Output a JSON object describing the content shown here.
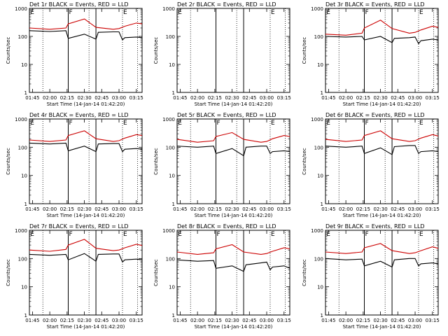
{
  "chart_data": [
    {
      "type": "line",
      "title": "Det 1r BLACK = Events, RED = LLD",
      "ylabel": "Counts/sec",
      "xlabel": "Start Time (14-Jan-14 01:42:20)",
      "yscale": "log",
      "ylim": [
        1,
        1000
      ],
      "xticks": [
        "01:45",
        "02:00",
        "02:15",
        "02:30",
        "02:45",
        "03:00",
        "03:15"
      ],
      "xlim": [
        "01:42:20",
        "03:20"
      ],
      "markers": [
        {
          "label": "E",
          "time": "01:42:30"
        },
        {
          "label": "F",
          "time": "02:16"
        },
        {
          "label": "E",
          "time": "03:03"
        }
      ],
      "solid_lines": [
        "02:16",
        "02:40"
      ],
      "dotted_lines": [
        "01:54",
        "02:34",
        "03:03",
        "03:16"
      ],
      "series": [
        {
          "color": "#000000",
          "x": [
            "01:42:20",
            "02:00",
            "02:14",
            "02:16",
            "02:30",
            "02:40",
            "02:42",
            "02:55",
            "03:00",
            "03:03",
            "03:05",
            "03:15",
            "03:20"
          ],
          "values": [
            160,
            150,
            160,
            85,
            120,
            80,
            140,
            145,
            145,
            75,
            90,
            95,
            90
          ]
        },
        {
          "color": "#cc0000",
          "x": [
            "01:42:20",
            "02:00",
            "02:14",
            "02:16",
            "02:30",
            "02:40",
            "02:55",
            "03:00",
            "03:05",
            "03:15",
            "03:20"
          ],
          "values": [
            200,
            180,
            200,
            280,
            420,
            210,
            180,
            190,
            230,
            300,
            280
          ]
        }
      ]
    },
    {
      "type": "line",
      "title": "Det 2r BLACK = Events, RED = LLD",
      "ylabel": "Counts/sec",
      "xlabel": "Start Time (14-Jan-14 01:42:20)",
      "yscale": "log",
      "ylim": [
        1,
        1000
      ],
      "xticks": [
        "01:45",
        "02:00",
        "02:15",
        "02:30",
        "02:45",
        "03:00",
        "03:15"
      ],
      "xlim": [
        "01:42:20",
        "03:20"
      ],
      "markers": [
        {
          "label": "E",
          "time": "01:42:30"
        },
        {
          "label": "E",
          "time": "03:03"
        }
      ],
      "solid_lines": [
        "02:16",
        "02:40"
      ],
      "dotted_lines": [
        "01:54",
        "02:34",
        "03:03",
        "03:16"
      ],
      "series": []
    },
    {
      "type": "line",
      "title": "Det 3r BLACK = Events, RED = LLD",
      "ylabel": "Counts/sec",
      "xlabel": "Start Time (14-Jan-14 01:42:20)",
      "yscale": "log",
      "ylim": [
        1,
        1000
      ],
      "xticks": [
        "01:45",
        "02:00",
        "02:15",
        "02:30",
        "02:45",
        "03:00",
        "03:15"
      ],
      "xlim": [
        "01:42:20",
        "03:20"
      ],
      "markers": [
        {
          "label": "E",
          "time": "01:42:30"
        },
        {
          "label": "F",
          "time": "02:16"
        },
        {
          "label": "E",
          "time": "03:03"
        }
      ],
      "solid_lines": [
        "02:16",
        "02:40"
      ],
      "dotted_lines": [
        "01:54",
        "02:34",
        "03:03",
        "03:16"
      ],
      "series": [
        {
          "color": "#000000",
          "x": [
            "01:42:20",
            "02:00",
            "02:14",
            "02:16",
            "02:30",
            "02:40",
            "02:42",
            "02:55",
            "03:00",
            "03:03",
            "03:05",
            "03:15",
            "03:20"
          ],
          "values": [
            100,
            95,
            100,
            75,
            100,
            60,
            85,
            90,
            95,
            55,
            70,
            80,
            75
          ]
        },
        {
          "color": "#cc0000",
          "x": [
            "01:42:20",
            "02:00",
            "02:14",
            "02:16",
            "02:30",
            "02:40",
            "02:55",
            "03:00",
            "03:05",
            "03:15",
            "03:20"
          ],
          "values": [
            120,
            110,
            130,
            200,
            380,
            190,
            130,
            140,
            170,
            230,
            210
          ]
        }
      ]
    },
    {
      "type": "line",
      "title": "Det 4r BLACK = Events, RED = LLD",
      "ylabel": "Counts/sec",
      "xlabel": "Start Time (14-Jan-14 01:42:20)",
      "yscale": "log",
      "ylim": [
        1,
        1000
      ],
      "xticks": [
        "01:45",
        "02:00",
        "02:15",
        "02:30",
        "02:45",
        "03:00",
        "03:15"
      ],
      "xlim": [
        "01:42:20",
        "03:20"
      ],
      "markers": [
        {
          "label": "E",
          "time": "01:42:30"
        },
        {
          "label": "F",
          "time": "02:16"
        },
        {
          "label": "E",
          "time": "03:03"
        }
      ],
      "solid_lines": [
        "02:16",
        "02:40"
      ],
      "dotted_lines": [
        "01:54",
        "02:34",
        "03:03",
        "03:16"
      ],
      "series": [
        {
          "color": "#000000",
          "x": [
            "01:42:20",
            "02:00",
            "02:14",
            "02:16",
            "02:30",
            "02:40",
            "02:42",
            "02:55",
            "03:00",
            "03:03",
            "03:05",
            "03:15",
            "03:20"
          ],
          "values": [
            140,
            130,
            140,
            75,
            110,
            70,
            130,
            135,
            135,
            70,
            85,
            90,
            85
          ]
        },
        {
          "color": "#cc0000",
          "x": [
            "01:42:20",
            "02:00",
            "02:14",
            "02:16",
            "02:30",
            "02:40",
            "02:55",
            "03:00",
            "03:05",
            "03:15",
            "03:20"
          ],
          "values": [
            180,
            160,
            180,
            260,
            380,
            200,
            160,
            170,
            210,
            280,
            260
          ]
        }
      ]
    },
    {
      "type": "line",
      "title": "Det 5r BLACK = Events, RED = LLD",
      "ylabel": "Counts/sec",
      "xlabel": "Start Time (14-Jan-14 01:42:20)",
      "yscale": "log",
      "ylim": [
        1,
        1000
      ],
      "xticks": [
        "01:45",
        "02:00",
        "02:15",
        "02:30",
        "02:45",
        "03:00",
        "03:15"
      ],
      "xlim": [
        "01:42:20",
        "03:20"
      ],
      "markers": [
        {
          "label": "E",
          "time": "01:42:30"
        },
        {
          "label": "F",
          "time": "02:16"
        },
        {
          "label": "E",
          "time": "03:03"
        }
      ],
      "solid_lines": [
        "02:16",
        "02:40"
      ],
      "dotted_lines": [
        "01:54",
        "02:34",
        "03:03",
        "03:16"
      ],
      "series": [
        {
          "color": "#000000",
          "x": [
            "01:42:20",
            "02:00",
            "02:14",
            "02:16",
            "02:30",
            "02:40",
            "02:42",
            "02:55",
            "03:00",
            "03:03",
            "03:05",
            "03:15",
            "03:20"
          ],
          "values": [
            110,
            100,
            110,
            60,
            90,
            50,
            100,
            110,
            110,
            60,
            70,
            75,
            70
          ]
        },
        {
          "color": "#cc0000",
          "x": [
            "01:42:20",
            "02:00",
            "02:14",
            "02:16",
            "02:30",
            "02:40",
            "02:55",
            "03:00",
            "03:05",
            "03:15",
            "03:20"
          ],
          "values": [
            190,
            150,
            170,
            240,
            330,
            190,
            150,
            160,
            200,
            260,
            240
          ]
        }
      ]
    },
    {
      "type": "line",
      "title": "Det 6r BLACK = Events, RED = LLD",
      "ylabel": "Counts/sec",
      "xlabel": "Start Time (14-Jan-14 01:42:20)",
      "yscale": "log",
      "ylim": [
        1,
        1000
      ],
      "xticks": [
        "01:45",
        "02:00",
        "02:15",
        "02:30",
        "02:45",
        "03:00",
        "03:15"
      ],
      "xlim": [
        "01:42:20",
        "03:20"
      ],
      "markers": [
        {
          "label": "E",
          "time": "01:42:30"
        },
        {
          "label": "F",
          "time": "02:16"
        },
        {
          "label": "E",
          "time": "03:03"
        }
      ],
      "solid_lines": [
        "02:16",
        "02:40"
      ],
      "dotted_lines": [
        "01:54",
        "02:34",
        "03:03",
        "03:16"
      ],
      "series": [
        {
          "color": "#000000",
          "x": [
            "01:42:20",
            "02:00",
            "02:14",
            "02:16",
            "02:30",
            "02:40",
            "02:42",
            "02:55",
            "03:00",
            "03:03",
            "03:05",
            "03:15",
            "03:20"
          ],
          "values": [
            110,
            100,
            110,
            60,
            95,
            55,
            105,
            115,
            115,
            60,
            70,
            75,
            70
          ]
        },
        {
          "color": "#cc0000",
          "x": [
            "01:42:20",
            "02:00",
            "02:14",
            "02:16",
            "02:30",
            "02:40",
            "02:55",
            "03:00",
            "03:05",
            "03:15",
            "03:20"
          ],
          "values": [
            190,
            160,
            180,
            260,
            380,
            200,
            160,
            170,
            210,
            280,
            250
          ]
        }
      ]
    },
    {
      "type": "line",
      "title": "Det 7r BLACK = Events, RED = LLD",
      "ylabel": "Counts/sec",
      "xlabel": "Start Time (14-Jan-14 01:42:20)",
      "yscale": "log",
      "ylim": [
        1,
        1000
      ],
      "xticks": [
        "01:45",
        "02:00",
        "02:15",
        "02:30",
        "02:45",
        "03:00",
        "03:15"
      ],
      "xlim": [
        "01:42:20",
        "03:20"
      ],
      "markers": [
        {
          "label": "E",
          "time": "01:42:30"
        },
        {
          "label": "F",
          "time": "02:16"
        },
        {
          "label": "E",
          "time": "03:03"
        }
      ],
      "solid_lines": [
        "02:16",
        "02:40"
      ],
      "dotted_lines": [
        "01:54",
        "02:34",
        "03:03",
        "03:16"
      ],
      "series": [
        {
          "color": "#000000",
          "x": [
            "01:42:20",
            "02:00",
            "02:14",
            "02:16",
            "02:30",
            "02:40",
            "02:42",
            "02:55",
            "03:00",
            "03:03",
            "03:05",
            "03:15",
            "03:20"
          ],
          "values": [
            140,
            130,
            140,
            90,
            150,
            80,
            140,
            145,
            145,
            75,
            90,
            95,
            90
          ]
        },
        {
          "color": "#cc0000",
          "x": [
            "01:42:20",
            "02:00",
            "02:14",
            "02:16",
            "02:30",
            "02:40",
            "02:55",
            "03:00",
            "03:05",
            "03:15",
            "03:20"
          ],
          "values": [
            200,
            180,
            210,
            300,
            480,
            230,
            190,
            200,
            240,
            320,
            290
          ]
        }
      ]
    },
    {
      "type": "line",
      "title": "Det 8r BLACK = Events, RED = LLD",
      "ylabel": "Counts/sec",
      "xlabel": "Start Time (14-Jan-14 01:42:20)",
      "yscale": "log",
      "ylim": [
        1,
        1000
      ],
      "xticks": [
        "01:45",
        "02:00",
        "02:15",
        "02:30",
        "02:45",
        "03:00",
        "03:15"
      ],
      "xlim": [
        "01:42:20",
        "03:20"
      ],
      "markers": [
        {
          "label": "E",
          "time": "01:42:30"
        },
        {
          "label": "F",
          "time": "02:16"
        },
        {
          "label": "E",
          "time": "03:03"
        }
      ],
      "solid_lines": [
        "02:16",
        "02:40"
      ],
      "dotted_lines": [
        "01:54",
        "02:34",
        "03:03",
        "03:16"
      ],
      "series": [
        {
          "color": "#000000",
          "x": [
            "01:42:20",
            "02:00",
            "02:14",
            "02:16",
            "02:30",
            "02:40",
            "02:42",
            "02:55",
            "03:00",
            "03:03",
            "03:05",
            "03:15",
            "03:20"
          ],
          "values": [
            90,
            80,
            85,
            45,
            55,
            35,
            60,
            70,
            75,
            40,
            50,
            55,
            45
          ]
        },
        {
          "color": "#cc0000",
          "x": [
            "01:42:20",
            "02:00",
            "02:14",
            "02:16",
            "02:30",
            "02:40",
            "02:55",
            "03:00",
            "03:05",
            "03:15",
            "03:20"
          ],
          "values": [
            170,
            140,
            160,
            220,
            310,
            170,
            140,
            150,
            180,
            240,
            220
          ]
        }
      ]
    },
    {
      "type": "line",
      "title": "Det 9r BLACK = Events, RED = LLD",
      "ylabel": "Counts/sec",
      "xlabel": "Start Time (14-Jan-14 01:42:20)",
      "yscale": "log",
      "ylim": [
        1,
        1000
      ],
      "xticks": [
        "01:45",
        "02:00",
        "02:15",
        "02:30",
        "02:45",
        "03:00",
        "03:15"
      ],
      "xlim": [
        "01:42:20",
        "03:20"
      ],
      "markers": [
        {
          "label": "E",
          "time": "01:42:30"
        },
        {
          "label": "F",
          "time": "02:16"
        },
        {
          "label": "E",
          "time": "03:03"
        }
      ],
      "solid_lines": [
        "02:16",
        "02:40"
      ],
      "dotted_lines": [
        "01:54",
        "02:34",
        "03:03",
        "03:16"
      ],
      "series": [
        {
          "color": "#000000",
          "x": [
            "01:42:20",
            "02:00",
            "02:14",
            "02:16",
            "02:30",
            "02:40",
            "02:42",
            "02:55",
            "03:00",
            "03:03",
            "03:05",
            "03:15",
            "03:20"
          ],
          "values": [
            100,
            90,
            95,
            55,
            80,
            50,
            90,
            100,
            100,
            55,
            65,
            70,
            65
          ]
        },
        {
          "color": "#cc0000",
          "x": [
            "01:42:20",
            "02:00",
            "02:14",
            "02:16",
            "02:30",
            "02:40",
            "02:55",
            "03:00",
            "03:05",
            "03:15",
            "03:20"
          ],
          "values": [
            170,
            150,
            170,
            240,
            340,
            190,
            150,
            160,
            190,
            260,
            230
          ]
        }
      ]
    }
  ]
}
